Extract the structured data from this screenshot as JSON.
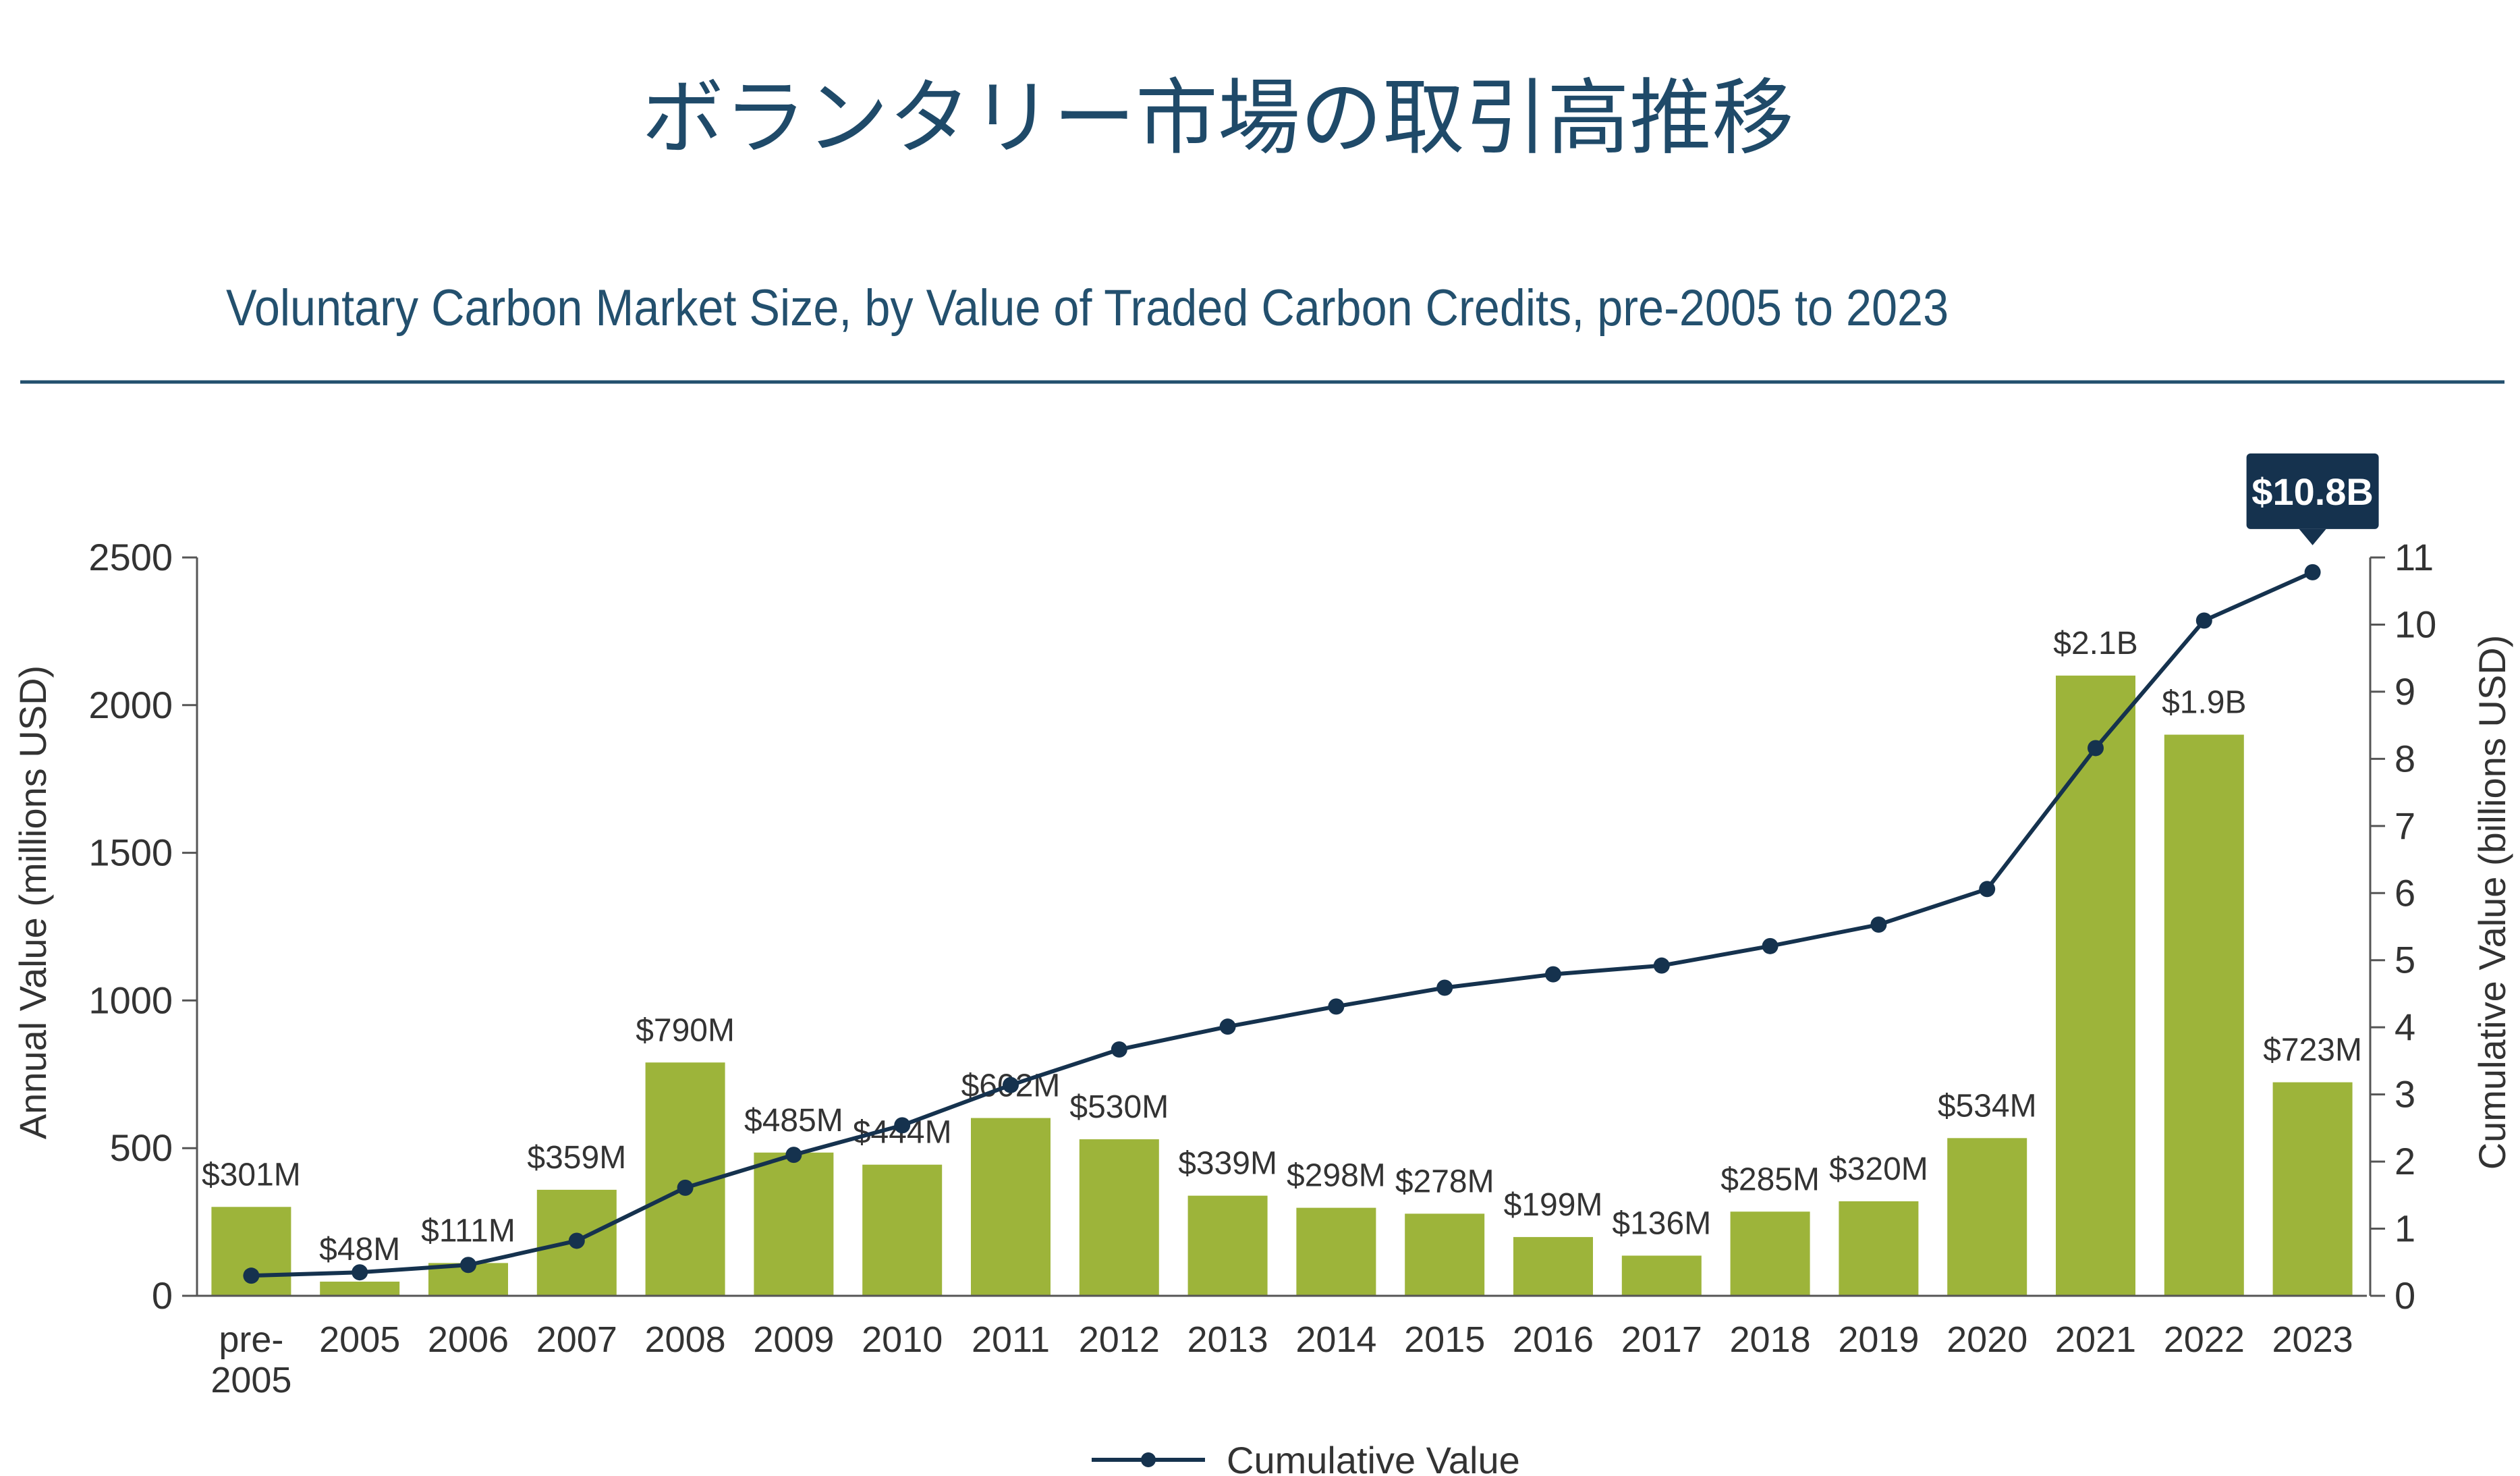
{
  "header": {
    "title_jp": "ボランタリー市場の取引高推移",
    "subtitle": "Voluntary Carbon Market Size, by Value of Traded Carbon Credits, pre-2005 to 2023"
  },
  "colors": {
    "bar": "#9db43a",
    "line": "#15324e",
    "title": "#1f4a69",
    "rule": "#23506e",
    "callout_bg": "#15324e"
  },
  "chart_data": {
    "type": "bar",
    "categories": [
      "pre-\n2005",
      "2005",
      "2006",
      "2007",
      "2008",
      "2009",
      "2010",
      "2011",
      "2012",
      "2013",
      "2014",
      "2015",
      "2016",
      "2017",
      "2018",
      "2019",
      "2020",
      "2021",
      "2022",
      "2023"
    ],
    "ylabel": "Annual Value (millions USD)",
    "y2label": "Cumulative Value (billions USD)",
    "ylim": [
      0,
      2500
    ],
    "y2lim": [
      0,
      11
    ],
    "yticks": [
      0,
      500,
      1000,
      1500,
      2000,
      2500
    ],
    "y2ticks": [
      0,
      1,
      2,
      3,
      4,
      5,
      6,
      7,
      8,
      9,
      10,
      11
    ],
    "series": [
      {
        "name": "Annual Value",
        "type": "bar",
        "values": [
          301,
          48,
          111,
          359,
          790,
          485,
          444,
          602,
          530,
          339,
          298,
          278,
          199,
          136,
          285,
          320,
          534,
          2100,
          1900,
          723
        ],
        "labels": [
          "$301M",
          "$48M",
          "$111M",
          "$359M",
          "$790M",
          "$485M",
          "$444M",
          "$602M",
          "$530M",
          "$339M",
          "$298M",
          "$278M",
          "$199M",
          "$136M",
          "$285M",
          "$320M",
          "$534M",
          "$2.1B",
          "$1.9B",
          "$723M"
        ]
      },
      {
        "name": "Cumulative Value",
        "type": "line",
        "axis": "right",
        "values": [
          0.3,
          0.35,
          0.46,
          0.82,
          1.61,
          2.1,
          2.54,
          3.14,
          3.67,
          4.01,
          4.31,
          4.59,
          4.79,
          4.92,
          5.21,
          5.53,
          6.06,
          8.16,
          10.06,
          10.78
        ]
      }
    ],
    "callout": "$10.8B",
    "legend": {
      "position": "bottom-center",
      "entries": [
        "Cumulative Value"
      ]
    },
    "grid": false
  }
}
